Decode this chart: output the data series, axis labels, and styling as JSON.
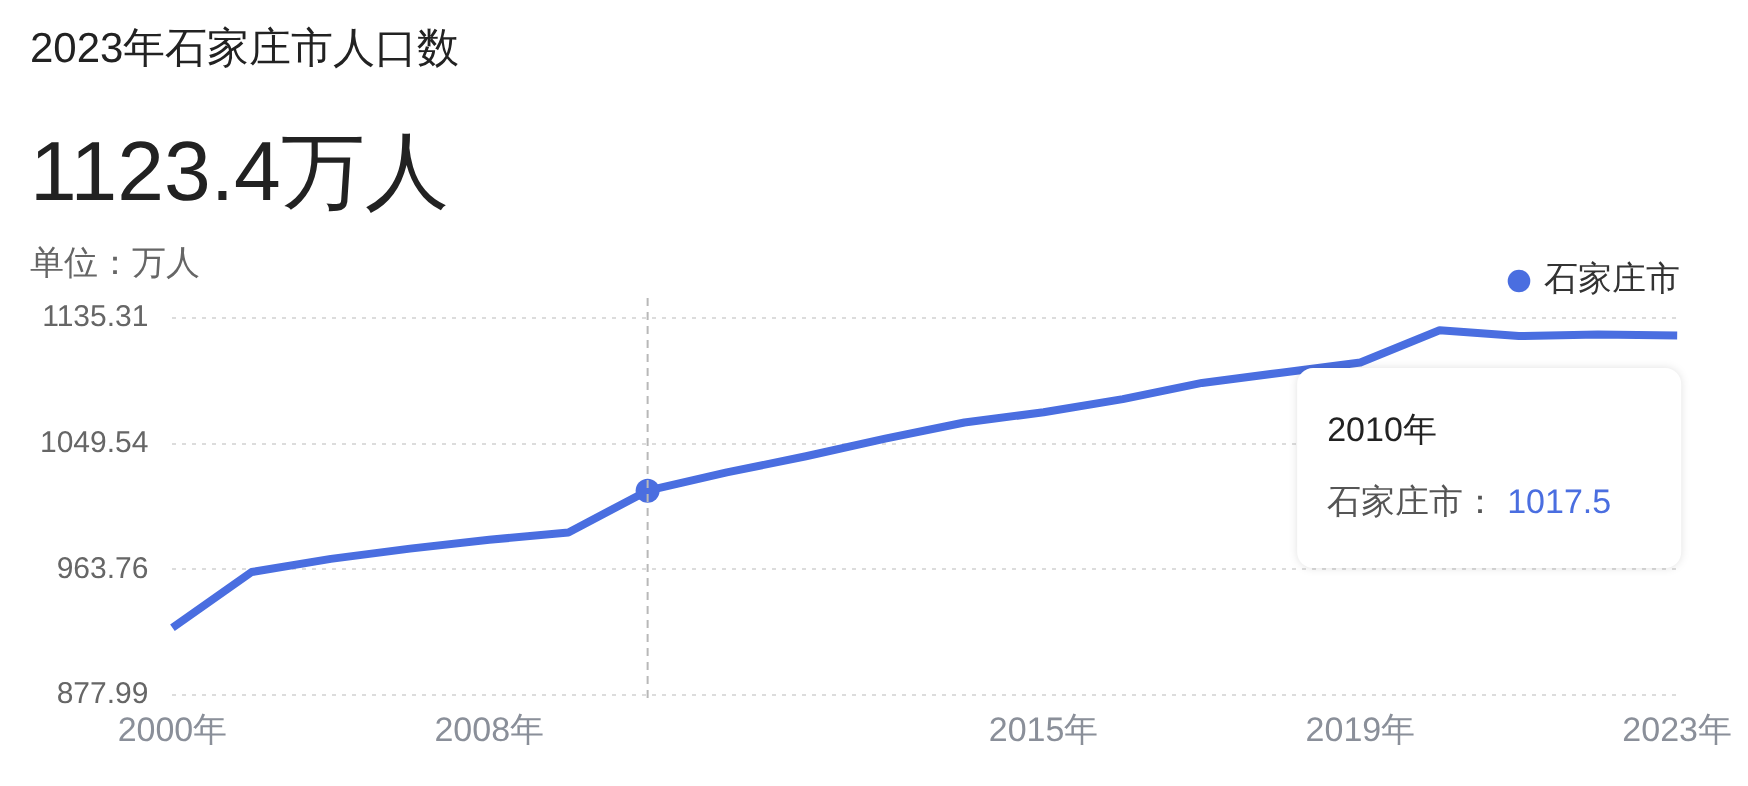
{
  "chart_data": {
    "type": "line",
    "title": "2023年石家庄市人口数",
    "subtitle": "1123.4万人",
    "ylabel": "单位：万人",
    "categories": [
      "2000年",
      null,
      null,
      null,
      "2008年",
      null,
      null,
      null,
      null,
      null,
      null,
      "2015年",
      null,
      null,
      null,
      "2019年",
      null,
      null,
      null,
      "2023年"
    ],
    "series": [
      {
        "name": "石家庄市",
        "color": "#4a6ee0",
        "values": [
          924,
          962,
          971,
          978,
          984,
          989,
          1017.5,
          1030,
          1041,
          1053,
          1064,
          1071,
          1080,
          1091,
          1098,
          1105,
          1127,
          1123,
          1124,
          1123.4
        ]
      }
    ],
    "ylim": [
      877.99,
      1135.31
    ],
    "yticks": [
      877.99,
      963.76,
      1049.54,
      1135.31
    ],
    "grid": "y",
    "legend": "top right",
    "marker": "none",
    "line_style": "solid",
    "annotations": [
      "2010年",
      "石家庄市：",
      "1017.5"
    ]
  }
}
